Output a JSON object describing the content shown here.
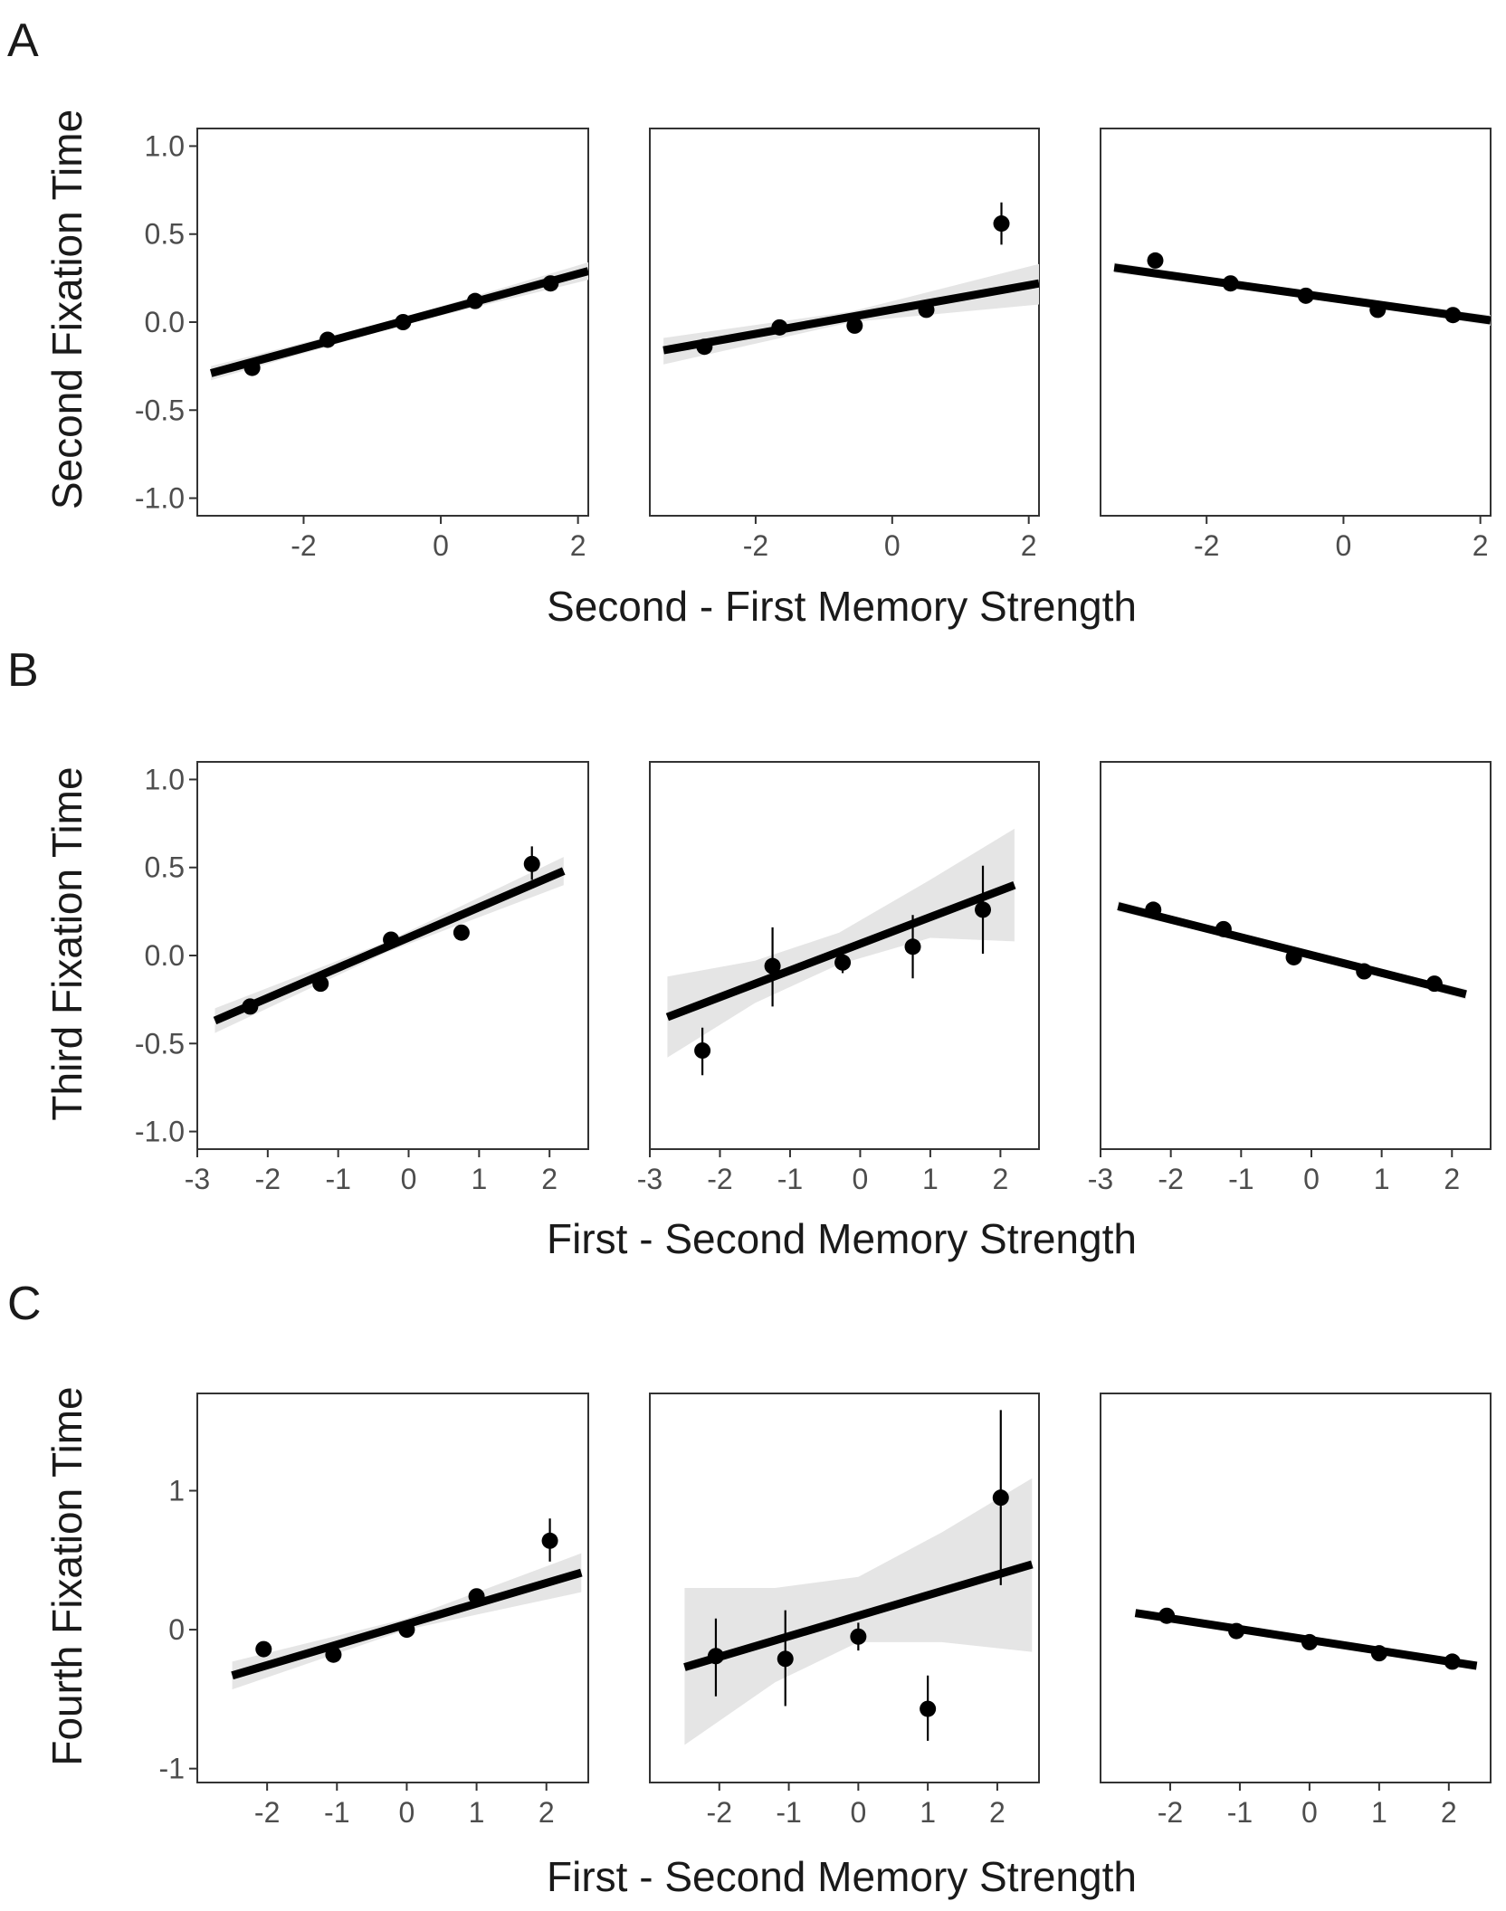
{
  "rows": [
    {
      "letter": "A",
      "ylabel": "Second Fixation Time",
      "xlabel": "Second - First Memory Strength"
    },
    {
      "letter": "B",
      "ylabel": "Third Fixation Time",
      "xlabel": "First - Second Memory Strength"
    },
    {
      "letter": "C",
      "ylabel": "Fourth Fixation Time",
      "xlabel": "First - Second Memory Strength"
    }
  ],
  "chart_data": [
    {
      "type": "scatter",
      "row": 0,
      "col": 0,
      "xlim": [
        -3.55,
        2.15
      ],
      "ylim": [
        -1.1,
        1.1
      ],
      "xticks": [
        -2,
        0,
        2
      ],
      "xtick_labels": [
        "-2",
        "0",
        "2"
      ],
      "yticks": [
        -1.0,
        -0.5,
        0.0,
        0.5,
        1.0
      ],
      "ytick_labels": [
        "-1.0",
        "-0.5",
        "0.0",
        "0.5",
        "1.0"
      ],
      "show_yticks": true,
      "points": [
        {
          "x": -2.75,
          "y": -0.26,
          "lo": -0.29,
          "hi": -0.23
        },
        {
          "x": -1.65,
          "y": -0.1,
          "lo": -0.12,
          "hi": -0.08
        },
        {
          "x": -0.55,
          "y": 0.0,
          "lo": -0.02,
          "hi": 0.02
        },
        {
          "x": 0.5,
          "y": 0.12,
          "lo": 0.1,
          "hi": 0.14
        },
        {
          "x": 1.6,
          "y": 0.22,
          "lo": 0.2,
          "hi": 0.24
        }
      ],
      "fit": {
        "x0": -3.35,
        "y0": -0.29,
        "x1": 2.15,
        "y1": 0.29
      },
      "band": [
        {
          "x": -3.35,
          "lo": -0.33,
          "hi": -0.25
        },
        {
          "x": -0.6,
          "lo": -0.02,
          "hi": 0.02
        },
        {
          "x": 2.15,
          "lo": 0.24,
          "hi": 0.34
        }
      ]
    },
    {
      "type": "scatter",
      "row": 0,
      "col": 1,
      "xlim": [
        -3.55,
        2.15
      ],
      "ylim": [
        -1.1,
        1.1
      ],
      "xticks": [
        -2,
        0,
        2
      ],
      "xtick_labels": [
        "-2",
        "0",
        "2"
      ],
      "yticks": [
        -1.0,
        -0.5,
        0.0,
        0.5,
        1.0
      ],
      "ytick_labels": [],
      "show_yticks": false,
      "points": [
        {
          "x": -2.75,
          "y": -0.14,
          "lo": -0.16,
          "hi": -0.12
        },
        {
          "x": -1.65,
          "y": -0.03,
          "lo": -0.05,
          "hi": -0.01
        },
        {
          "x": -0.55,
          "y": -0.02,
          "lo": -0.04,
          "hi": 0.0
        },
        {
          "x": 0.5,
          "y": 0.07,
          "lo": 0.05,
          "hi": 0.09
        },
        {
          "x": 1.6,
          "y": 0.56,
          "lo": 0.44,
          "hi": 0.68
        }
      ],
      "fit": {
        "x0": -3.35,
        "y0": -0.16,
        "x1": 2.15,
        "y1": 0.22
      },
      "band": [
        {
          "x": -3.35,
          "lo": -0.24,
          "hi": -0.09
        },
        {
          "x": -0.6,
          "lo": -0.0,
          "hi": 0.06
        },
        {
          "x": 2.15,
          "lo": 0.1,
          "hi": 0.33
        }
      ]
    },
    {
      "type": "scatter",
      "row": 0,
      "col": 2,
      "xlim": [
        -3.55,
        2.15
      ],
      "ylim": [
        -1.1,
        1.1
      ],
      "xticks": [
        -2,
        0,
        2
      ],
      "xtick_labels": [
        "-2",
        "0",
        "2"
      ],
      "yticks": [
        -1.0,
        -0.5,
        0.0,
        0.5,
        1.0
      ],
      "ytick_labels": [],
      "show_yticks": false,
      "points": [
        {
          "x": -2.75,
          "y": 0.35,
          "lo": 0.33,
          "hi": 0.37
        },
        {
          "x": -1.65,
          "y": 0.22,
          "lo": 0.2,
          "hi": 0.24
        },
        {
          "x": -0.55,
          "y": 0.15,
          "lo": 0.13,
          "hi": 0.17
        },
        {
          "x": 0.5,
          "y": 0.07,
          "lo": 0.05,
          "hi": 0.09
        },
        {
          "x": 1.6,
          "y": 0.04,
          "lo": 0.02,
          "hi": 0.06
        }
      ],
      "fit": {
        "x0": -3.35,
        "y0": 0.31,
        "x1": 2.15,
        "y1": 0.01
      },
      "band": [
        {
          "x": -3.35,
          "lo": 0.28,
          "hi": 0.34
        },
        {
          "x": -0.6,
          "lo": 0.15,
          "hi": 0.17
        },
        {
          "x": 2.15,
          "lo": -0.02,
          "hi": 0.04
        }
      ]
    },
    {
      "type": "scatter",
      "row": 1,
      "col": 0,
      "xlim": [
        -3.0,
        2.55
      ],
      "ylim": [
        -1.1,
        1.1
      ],
      "xticks": [
        -3,
        -2,
        -1,
        0,
        1,
        2
      ],
      "xtick_labels": [
        "-3",
        "-2",
        "-1",
        "0",
        "1",
        "2"
      ],
      "yticks": [
        -1.0,
        -0.5,
        0.0,
        0.5,
        1.0
      ],
      "ytick_labels": [
        "-1.0",
        "-0.5",
        "0.0",
        "0.5",
        "1.0"
      ],
      "show_yticks": true,
      "points": [
        {
          "x": -2.25,
          "y": -0.29,
          "lo": -0.32,
          "hi": -0.26
        },
        {
          "x": -1.25,
          "y": -0.16,
          "lo": -0.19,
          "hi": -0.13
        },
        {
          "x": -0.25,
          "y": 0.09,
          "lo": 0.07,
          "hi": 0.11
        },
        {
          "x": 0.75,
          "y": 0.13,
          "lo": 0.1,
          "hi": 0.16
        },
        {
          "x": 1.75,
          "y": 0.52,
          "lo": 0.43,
          "hi": 0.62
        }
      ],
      "fit": {
        "x0": -2.75,
        "y0": -0.37,
        "x1": 2.2,
        "y1": 0.48
      },
      "band": [
        {
          "x": -2.75,
          "lo": -0.44,
          "hi": -0.3
        },
        {
          "x": -0.3,
          "lo": 0.02,
          "hi": 0.08
        },
        {
          "x": 2.2,
          "lo": 0.4,
          "hi": 0.56
        }
      ]
    },
    {
      "type": "scatter",
      "row": 1,
      "col": 1,
      "xlim": [
        -3.0,
        2.55
      ],
      "ylim": [
        -1.1,
        1.1
      ],
      "xticks": [
        -3,
        -2,
        -1,
        0,
        1,
        2
      ],
      "xtick_labels": [
        "-3",
        "-2",
        "-1",
        "0",
        "1",
        "2"
      ],
      "yticks": [
        -1.0,
        -0.5,
        0.0,
        0.5,
        1.0
      ],
      "ytick_labels": [],
      "show_yticks": false,
      "points": [
        {
          "x": -2.25,
          "y": -0.54,
          "lo": -0.68,
          "hi": -0.41
        },
        {
          "x": -1.25,
          "y": -0.06,
          "lo": -0.29,
          "hi": 0.16
        },
        {
          "x": -0.25,
          "y": -0.04,
          "lo": -0.1,
          "hi": 0.02
        },
        {
          "x": 0.75,
          "y": 0.05,
          "lo": -0.13,
          "hi": 0.23
        },
        {
          "x": 1.75,
          "y": 0.26,
          "lo": 0.01,
          "hi": 0.51
        }
      ],
      "fit": {
        "x0": -2.75,
        "y0": -0.35,
        "x1": 2.2,
        "y1": 0.4
      },
      "band": [
        {
          "x": -2.75,
          "lo": -0.58,
          "hi": -0.12
        },
        {
          "x": -1.5,
          "lo": -0.27,
          "hi": -0.03
        },
        {
          "x": -0.3,
          "lo": -0.05,
          "hi": 0.13
        },
        {
          "x": 1.0,
          "lo": 0.1,
          "hi": 0.43
        },
        {
          "x": 2.2,
          "lo": 0.08,
          "hi": 0.72
        }
      ]
    },
    {
      "type": "scatter",
      "row": 1,
      "col": 2,
      "xlim": [
        -3.0,
        2.55
      ],
      "ylim": [
        -1.1,
        1.1
      ],
      "xticks": [
        -3,
        -2,
        -1,
        0,
        1,
        2
      ],
      "xtick_labels": [
        "-3",
        "-2",
        "-1",
        "0",
        "1",
        "2"
      ],
      "yticks": [
        -1.0,
        -0.5,
        0.0,
        0.5,
        1.0
      ],
      "ytick_labels": [],
      "show_yticks": false,
      "points": [
        {
          "x": -2.25,
          "y": 0.26,
          "lo": 0.24,
          "hi": 0.28
        },
        {
          "x": -1.25,
          "y": 0.15,
          "lo": 0.13,
          "hi": 0.17
        },
        {
          "x": -0.25,
          "y": -0.01,
          "lo": -0.03,
          "hi": 0.01
        },
        {
          "x": 0.75,
          "y": -0.09,
          "lo": -0.11,
          "hi": -0.07
        },
        {
          "x": 1.75,
          "y": -0.16,
          "lo": -0.18,
          "hi": -0.14
        }
      ],
      "fit": {
        "x0": -2.75,
        "y0": 0.28,
        "x1": 2.2,
        "y1": -0.22
      },
      "band": [
        {
          "x": -2.75,
          "lo": 0.25,
          "hi": 0.31
        },
        {
          "x": -0.3,
          "lo": 0.02,
          "hi": 0.04
        },
        {
          "x": 2.2,
          "lo": -0.25,
          "hi": -0.19
        }
      ]
    },
    {
      "type": "scatter",
      "row": 2,
      "col": 0,
      "xlim": [
        -3.0,
        2.6
      ],
      "ylim": [
        -1.1,
        1.7
      ],
      "xticks": [
        -2,
        -1,
        0,
        1,
        2
      ],
      "xtick_labels": [
        "-2",
        "-1",
        "0",
        "1",
        "2"
      ],
      "yticks": [
        -1,
        0,
        1
      ],
      "ytick_labels": [
        "-1",
        "0",
        "1"
      ],
      "show_yticks": true,
      "points": [
        {
          "x": -2.05,
          "y": -0.14,
          "lo": -0.19,
          "hi": -0.09
        },
        {
          "x": -1.05,
          "y": -0.18,
          "lo": -0.21,
          "hi": -0.15
        },
        {
          "x": 0.0,
          "y": 0.0,
          "lo": -0.02,
          "hi": 0.02
        },
        {
          "x": 1.0,
          "y": 0.24,
          "lo": 0.19,
          "hi": 0.29
        },
        {
          "x": 2.05,
          "y": 0.64,
          "lo": 0.49,
          "hi": 0.8
        }
      ],
      "fit": {
        "x0": -2.5,
        "y0": -0.33,
        "x1": 2.5,
        "y1": 0.41
      },
      "band": [
        {
          "x": -2.5,
          "lo": -0.43,
          "hi": -0.23
        },
        {
          "x": 0.0,
          "lo": 0.0,
          "hi": 0.08
        },
        {
          "x": 2.5,
          "lo": 0.27,
          "hi": 0.55
        }
      ]
    },
    {
      "type": "scatter",
      "row": 2,
      "col": 1,
      "xlim": [
        -3.0,
        2.6
      ],
      "ylim": [
        -1.1,
        1.7
      ],
      "xticks": [
        -2,
        -1,
        0,
        1,
        2
      ],
      "xtick_labels": [
        "-2",
        "-1",
        "0",
        "1",
        "2"
      ],
      "yticks": [
        -1,
        0,
        1
      ],
      "ytick_labels": [],
      "show_yticks": false,
      "points": [
        {
          "x": -2.05,
          "y": -0.19,
          "lo": -0.48,
          "hi": 0.08
        },
        {
          "x": -1.05,
          "y": -0.21,
          "lo": -0.55,
          "hi": 0.14
        },
        {
          "x": 0.0,
          "y": -0.05,
          "lo": -0.15,
          "hi": 0.05
        },
        {
          "x": 1.0,
          "y": -0.57,
          "lo": -0.8,
          "hi": -0.33
        },
        {
          "x": 2.05,
          "y": 0.95,
          "lo": 0.32,
          "hi": 1.58
        }
      ],
      "fit": {
        "x0": -2.5,
        "y0": -0.27,
        "x1": 2.5,
        "y1": 0.47
      },
      "band": [
        {
          "x": -2.5,
          "lo": -0.83,
          "hi": 0.3
        },
        {
          "x": -1.2,
          "lo": -0.38,
          "hi": 0.3
        },
        {
          "x": 0.0,
          "lo": -0.09,
          "hi": 0.38
        },
        {
          "x": 1.2,
          "lo": -0.09,
          "hi": 0.7
        },
        {
          "x": 2.5,
          "lo": -0.16,
          "hi": 1.09
        }
      ]
    },
    {
      "type": "scatter",
      "row": 2,
      "col": 2,
      "xlim": [
        -3.0,
        2.6
      ],
      "ylim": [
        -1.1,
        1.7
      ],
      "xticks": [
        -2,
        -1,
        0,
        1,
        2
      ],
      "xtick_labels": [
        "-2",
        "-1",
        "0",
        "1",
        "2"
      ],
      "yticks": [
        -1,
        0,
        1
      ],
      "ytick_labels": [],
      "show_yticks": false,
      "points": [
        {
          "x": -2.05,
          "y": 0.1,
          "lo": 0.08,
          "hi": 0.12
        },
        {
          "x": -1.05,
          "y": -0.01,
          "lo": -0.03,
          "hi": 0.01
        },
        {
          "x": 0.0,
          "y": -0.09,
          "lo": -0.11,
          "hi": -0.07
        },
        {
          "x": 1.0,
          "y": -0.17,
          "lo": -0.19,
          "hi": -0.15
        },
        {
          "x": 2.05,
          "y": -0.23,
          "lo": -0.25,
          "hi": -0.21
        }
      ],
      "fit": {
        "x0": -2.5,
        "y0": 0.12,
        "x1": 2.4,
        "y1": -0.26
      },
      "band": [
        {
          "x": -2.5,
          "lo": 0.1,
          "hi": 0.14
        },
        {
          "x": 0.0,
          "lo": -0.08,
          "hi": -0.06
        },
        {
          "x": 2.4,
          "lo": -0.28,
          "hi": -0.24
        }
      ]
    }
  ],
  "colors": {
    "point": "#000000",
    "fit_line": "#000000",
    "ci_band": "#e5e5e5",
    "frame": "#333333",
    "tick_text": "#4d4d4d",
    "title_text": "#1a1a1a"
  }
}
